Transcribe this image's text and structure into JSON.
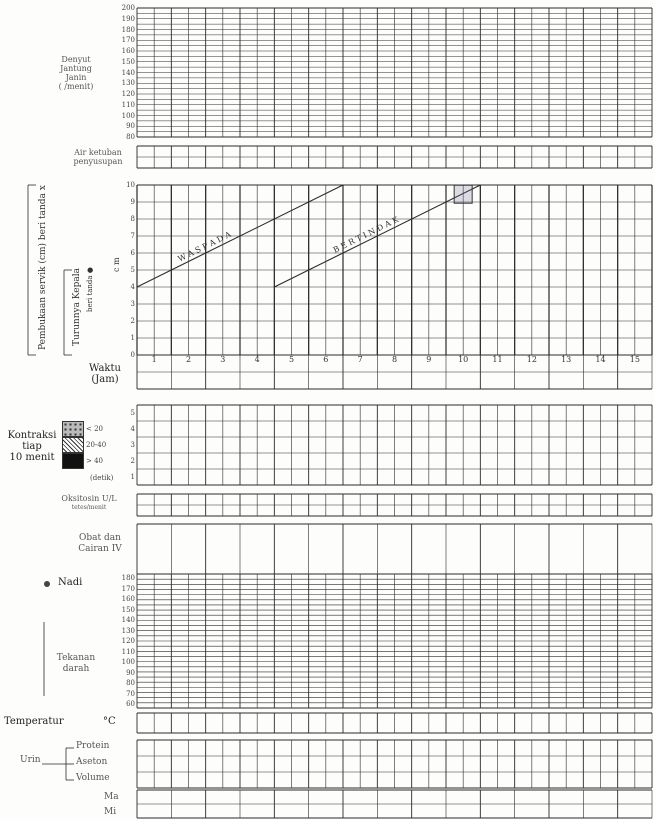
{
  "fhr": {
    "label_lines": [
      "Denyut",
      "Jantung",
      "Janin",
      "( /menit)"
    ],
    "scale": [
      "200",
      "190",
      "180",
      "170",
      "160",
      "150",
      "140",
      "130",
      "120",
      "110",
      "100",
      "90",
      "80"
    ]
  },
  "amniotic": {
    "label_lines": [
      "Air ketuban",
      "penyusupan"
    ]
  },
  "cervix": {
    "scale": [
      "10",
      "9",
      "8",
      "7",
      "6",
      "5",
      "4",
      "3",
      "2",
      "1",
      "0"
    ],
    "unit": "c m",
    "dilation_label": "Pembukaan servik (cm) beri tanda x",
    "descent_label": "Turunnya Kepala",
    "descent_sub": "beri tanda ●",
    "alert_line_label": "W A S P A D A",
    "action_line_label": "B E R T I N D A K",
    "alert_line": {
      "start": [
        0,
        4
      ],
      "end": [
        6,
        10
      ]
    },
    "action_line": {
      "start": [
        4,
        4
      ],
      "end": [
        10,
        10
      ]
    },
    "mark_box": {
      "hour": 9.5,
      "cm": 9.4
    }
  },
  "time": {
    "label_lines": [
      "Waktu",
      "(Jam)"
    ],
    "hours": [
      "1",
      "2",
      "3",
      "4",
      "5",
      "6",
      "7",
      "8",
      "9",
      "10",
      "11",
      "12",
      "13",
      "14",
      "15"
    ]
  },
  "contractions": {
    "label_lines": [
      "Kontraksi",
      "tiap",
      "10 menit"
    ],
    "scale": [
      "5",
      "4",
      "3",
      "2",
      "1"
    ],
    "legend": [
      "< 20",
      "20-40",
      "> 40"
    ],
    "unit": "(detik)"
  },
  "oxytocin": {
    "label": "Oksitosin U/L",
    "sub": "tetes/menit"
  },
  "drugs": {
    "label_lines": [
      "Obat dan",
      "Cairan IV"
    ]
  },
  "pulse": {
    "label": "Nadi",
    "scale": [
      "180",
      "170",
      "160",
      "150",
      "140",
      "130",
      "120",
      "110",
      "100",
      "90",
      "80",
      "70",
      "60"
    ]
  },
  "bp": {
    "label_lines": [
      "Tekanan",
      "darah"
    ]
  },
  "temperature": {
    "label": "Temperatur",
    "unit": "°C"
  },
  "urine": {
    "label": "Urin",
    "items": [
      "Protein",
      "Aseton",
      "Volume"
    ]
  },
  "intake": {
    "rows": [
      "Ma",
      "Mi"
    ]
  }
}
